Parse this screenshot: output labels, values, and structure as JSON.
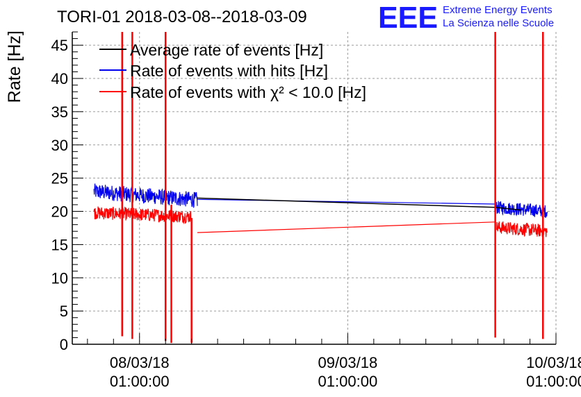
{
  "header": {
    "title": "TORI-01 2018-03-08--2018-03-09",
    "logo_text": "EEE",
    "logo_line1": "Extreme Energy Events",
    "logo_line2": "La Scienza nelle Scuole"
  },
  "colors": {
    "average": "#000000",
    "hits": "#0000ee",
    "chi2": "#ff0000",
    "logo": "#1a1aff",
    "grid": "#9a9a9a"
  },
  "chart_data": {
    "type": "line",
    "title": "TORI-01 2018-03-08--2018-03-09",
    "xlabel": "",
    "ylabel": "Rate [Hz]",
    "xlim": [
      "2018-03-07 17:15",
      "2018-03-10 01:00"
    ],
    "ylim": [
      0,
      47
    ],
    "yticks": [
      0,
      5,
      10,
      15,
      20,
      25,
      30,
      35,
      40,
      45
    ],
    "xticks": [
      {
        "date": "08/03/18",
        "time": "01:00:00",
        "x": "2018-03-08 01:00"
      },
      {
        "date": "09/03/18",
        "time": "01:00:00",
        "x": "2018-03-09 01:00"
      },
      {
        "date": "10/03/18",
        "time": "01:00:00",
        "x": "2018-03-10 01:00"
      }
    ],
    "grid": true,
    "legend_position": "top-left",
    "series": [
      {
        "name": "Average rate of events [Hz]",
        "color": "#000000",
        "x": [
          "2018-03-08 07:40",
          "2018-03-09 18:00",
          "2018-03-09 21:00"
        ],
        "y": [
          22.0,
          20.6,
          20.2
        ]
      },
      {
        "name": "Rate of events with hits [Hz]",
        "color": "#0000ee",
        "segments": [
          {
            "x_start": "2018-03-07 19:45",
            "x_end": "2018-03-08 07:40",
            "y_start": 23.0,
            "y_end": 21.7,
            "noise": 1.2
          },
          {
            "x": [
              "2018-03-08 07:40",
              "2018-03-09 18:00"
            ],
            "y": [
              21.8,
              21.1
            ]
          },
          {
            "x_start": "2018-03-09 18:00",
            "x_end": "2018-03-10 00:00",
            "y_start": 20.6,
            "y_end": 20.0,
            "noise": 1.0
          }
        ]
      },
      {
        "name": "Rate of events with χ² < 10.0 [Hz]",
        "color": "#ff0000",
        "segments": [
          {
            "x_start": "2018-03-07 19:45",
            "x_end": "2018-03-08 07:00",
            "y_start": 19.8,
            "y_end": 19.2,
            "noise": 1.0
          },
          {
            "x": [
              "2018-03-08 07:40",
              "2018-03-09 18:00"
            ],
            "y": [
              16.8,
              18.4
            ]
          },
          {
            "x_start": "2018-03-09 18:10",
            "x_end": "2018-03-10 00:00",
            "y_start": 17.6,
            "y_end": 17.0,
            "noise": 1.0
          }
        ],
        "spikes": [
          {
            "x": "2018-03-07 23:00",
            "y_low": 1.2,
            "y_high": 47
          },
          {
            "x": "2018-03-08 00:10",
            "y_low": 0.8,
            "y_high": 47
          },
          {
            "x": "2018-03-08 04:00",
            "y_low": 0.5,
            "y_high": 47
          },
          {
            "x": "2018-03-08 04:40",
            "y_low": 0.2,
            "y_high": 21
          },
          {
            "x": "2018-03-08 07:00",
            "y_low": 0.2,
            "y_high": 19
          },
          {
            "x": "2018-03-09 18:00",
            "y_low": 1.0,
            "y_high": 47
          },
          {
            "x": "2018-03-09 23:30",
            "y_low": 0.8,
            "y_high": 47
          }
        ]
      }
    ]
  }
}
